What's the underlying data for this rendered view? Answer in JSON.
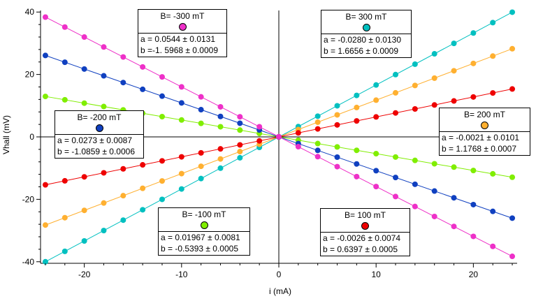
{
  "chart_data": {
    "type": "scatter",
    "xlabel": "i (mA)",
    "ylabel": "Vhall (mV)",
    "xlim": [
      -24.5,
      24.5
    ],
    "ylim": [
      -40.5,
      40.5
    ],
    "x_ticks": [
      -20,
      -10,
      0,
      10,
      20
    ],
    "y_ticks": [
      -40,
      -20,
      0,
      20,
      40
    ],
    "x": [
      -24,
      -22,
      -20,
      -18,
      -16,
      -14,
      -12,
      -10,
      -8,
      -6,
      -4,
      -2,
      0,
      2,
      4,
      6,
      8,
      10,
      12,
      14,
      16,
      18,
      20,
      22,
      24
    ],
    "series": [
      {
        "name": "B= 300 mT",
        "color": "#00c0c0",
        "slope": 1.6656,
        "intercept": -0.028
      },
      {
        "name": "B= 200 mT",
        "color": "#ffb030",
        "slope": 1.1768,
        "intercept": -0.0021
      },
      {
        "name": "B= 100 mT",
        "color": "#ee0000",
        "slope": 0.6397,
        "intercept": -0.0026
      },
      {
        "name": "B= -100 mT",
        "color": "#80ee00",
        "slope": -0.5393,
        "intercept": 0.01967
      },
      {
        "name": "B= -200 mT",
        "color": "#1040c0",
        "slope": -1.0859,
        "intercept": 0.0273
      },
      {
        "name": "B= -300 mT",
        "color": "#ee30c8",
        "slope": -1.5968,
        "intercept": 0.0544
      }
    ]
  },
  "legends": [
    {
      "title": "B= -300 mT",
      "color": "#ee30c8",
      "a": "a = 0.0544 ± 0.0131",
      "b": "b =-1. 5968 ± 0.0009"
    },
    {
      "title": "B= 300 mT",
      "color": "#00c0c0",
      "a": "a = -0.0280 ± 0.0130",
      "b": "b = 1.6656 ± 0.0009"
    },
    {
      "title": "B= -200 mT",
      "color": "#1040c0",
      "a": "a = 0.0273 ± 0.0087",
      "b": "b = -1.0859 ± 0.0006"
    },
    {
      "title": "B= 200 mT",
      "color": "#ffb030",
      "a": "a = -0.0021 ± 0.0101",
      "b": "b = 1.1768 ± 0.0007"
    },
    {
      "title": "B= -100 mT",
      "color": "#80ee00",
      "a": "a = 0.01967 ± 0.0081",
      "b": "b = -0.5393 ± 0.0005"
    },
    {
      "title": "B= 100 mT",
      "color": "#ee0000",
      "a": "a = -0.0026 ± 0.0074",
      "b": "b = 0.6397 ± 0.0005"
    }
  ]
}
